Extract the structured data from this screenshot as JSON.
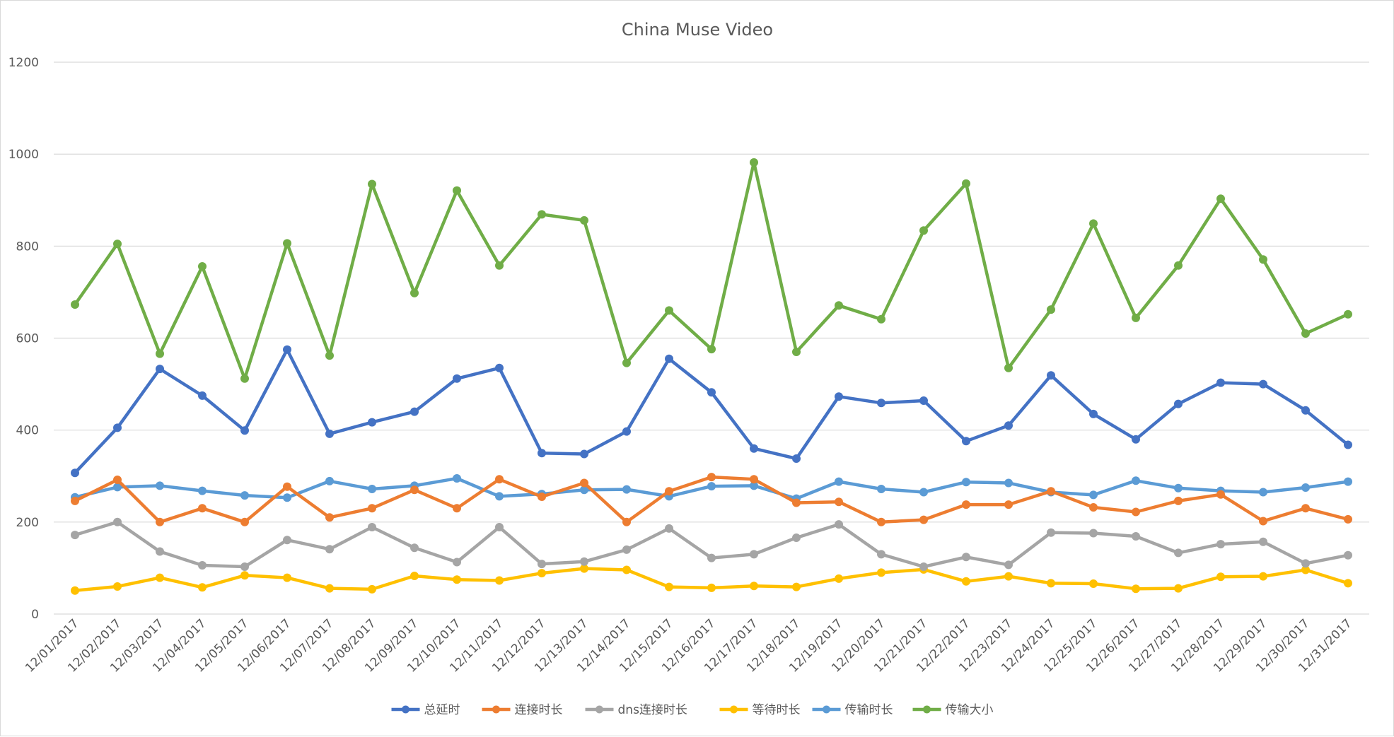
{
  "chart_data": {
    "type": "line",
    "title": "China Muse Video",
    "xlabel": "",
    "ylabel": "",
    "ylim": [
      0,
      1200
    ],
    "yticks": [
      "0",
      "200",
      "400",
      "600",
      "800",
      "1000",
      "1200"
    ],
    "grid": true,
    "legend_position": "bottom",
    "categories": [
      "12/01/2017",
      "12/02/2017",
      "12/03/2017",
      "12/04/2017",
      "12/05/2017",
      "12/06/2017",
      "12/07/2017",
      "12/08/2017",
      "12/09/2017",
      "12/10/2017",
      "12/11/2017",
      "12/12/2017",
      "12/13/2017",
      "12/14/2017",
      "12/15/2017",
      "12/16/2017",
      "12/17/2017",
      "12/18/2017",
      "12/19/2017",
      "12/20/2017",
      "12/21/2017",
      "12/22/2017",
      "12/23/2017",
      "12/24/2017",
      "12/25/2017",
      "12/26/2017",
      "12/27/2017",
      "12/28/2017",
      "12/29/2017",
      "12/30/2017",
      "12/31/2017"
    ],
    "series": [
      {
        "name": "总延时",
        "color": "#4472c4",
        "values": [
          307,
          405,
          533,
          475,
          399,
          575,
          392,
          417,
          440,
          512,
          535,
          350,
          348,
          397,
          555,
          482,
          360,
          338,
          473,
          459,
          464,
          376,
          410,
          519,
          435,
          380,
          457,
          503,
          500,
          443,
          368
        ]
      },
      {
        "name": "连接时长",
        "color": "#ed7d31",
        "values": [
          246,
          292,
          200,
          230,
          200,
          277,
          210,
          230,
          270,
          230,
          293,
          255,
          285,
          200,
          267,
          298,
          293,
          242,
          244,
          200,
          205,
          238,
          238,
          267,
          232,
          222,
          246,
          260,
          202,
          230,
          206
        ]
      },
      {
        "name": "dns连接时长",
        "color": "#a5a5a5",
        "values": [
          172,
          200,
          136,
          106,
          103,
          161,
          141,
          189,
          144,
          113,
          189,
          109,
          114,
          140,
          186,
          122,
          130,
          166,
          195,
          130,
          103,
          124,
          107,
          177,
          176,
          169,
          133,
          152,
          157,
          110,
          128
        ]
      },
      {
        "name": "等待时长",
        "color": "#ffc000",
        "values": [
          51,
          60,
          79,
          58,
          84,
          79,
          56,
          54,
          83,
          75,
          73,
          89,
          99,
          96,
          59,
          57,
          61,
          59,
          77,
          90,
          97,
          71,
          82,
          67,
          66,
          55,
          56,
          81,
          82,
          96,
          67
        ]
      },
      {
        "name": "传输时长",
        "color": "#5b9bd5",
        "values": [
          254,
          276,
          279,
          268,
          258,
          253,
          289,
          272,
          279,
          295,
          256,
          261,
          270,
          271,
          256,
          278,
          279,
          251,
          288,
          272,
          265,
          287,
          285,
          265,
          259,
          290,
          274,
          268,
          265,
          275,
          288
        ]
      },
      {
        "name": "传输大小",
        "color": "#70ad47",
        "values": [
          673,
          805,
          566,
          756,
          512,
          806,
          562,
          935,
          698,
          921,
          758,
          869,
          856,
          546,
          660,
          576,
          982,
          570,
          671,
          641,
          834,
          936,
          535,
          662,
          849,
          644,
          758,
          903,
          771,
          610,
          652
        ]
      }
    ]
  }
}
